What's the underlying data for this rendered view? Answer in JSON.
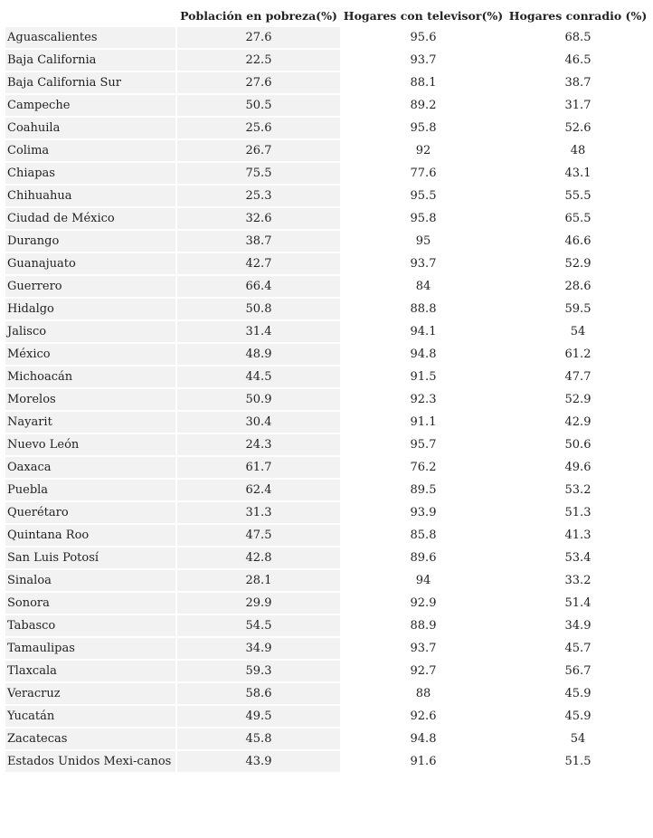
{
  "table": {
    "headers": [
      "Población en pobreza(%)",
      "Hogares con televisor(%)",
      "Hogares conradio (%)"
    ],
    "rows": [
      [
        "Aguascalientes",
        27.6,
        95.6,
        68.5
      ],
      [
        "Baja California",
        22.5,
        93.7,
        46.5
      ],
      [
        "Baja California Sur",
        27.6,
        88.1,
        38.7
      ],
      [
        "Campeche",
        50.5,
        89.2,
        31.7
      ],
      [
        "Coahuila",
        25.6,
        95.8,
        52.6
      ],
      [
        "Colima",
        26.7,
        92,
        48
      ],
      [
        "Chiapas",
        75.5,
        77.6,
        43.1
      ],
      [
        "Chihuahua",
        25.3,
        95.5,
        55.5
      ],
      [
        "Ciudad de México",
        32.6,
        95.8,
        65.5
      ],
      [
        "Durango",
        38.7,
        95,
        46.6
      ],
      [
        "Guanajuato",
        42.7,
        93.7,
        52.9
      ],
      [
        "Guerrero",
        66.4,
        84,
        28.6
      ],
      [
        "Hidalgo",
        50.8,
        88.8,
        59.5
      ],
      [
        "Jalisco",
        31.4,
        94.1,
        54
      ],
      [
        "México",
        48.9,
        94.8,
        61.2
      ],
      [
        "Michoacán",
        44.5,
        91.5,
        47.7
      ],
      [
        "Morelos",
        50.9,
        92.3,
        52.9
      ],
      [
        "Nayarit",
        30.4,
        91.1,
        42.9
      ],
      [
        "Nuevo León",
        24.3,
        95.7,
        50.6
      ],
      [
        "Oaxaca",
        61.7,
        76.2,
        49.6
      ],
      [
        "Puebla",
        62.4,
        89.5,
        53.2
      ],
      [
        "Querétaro",
        31.3,
        93.9,
        51.3
      ],
      [
        "Quintana Roo",
        47.5,
        85.8,
        41.3
      ],
      [
        "San Luis Potosí",
        42.8,
        89.6,
        53.4
      ],
      [
        "Sinaloa",
        28.1,
        94,
        33.2
      ],
      [
        "Sonora",
        29.9,
        92.9,
        51.4
      ],
      [
        "Tabasco",
        54.5,
        88.9,
        34.9
      ],
      [
        "Tamaulipas",
        34.9,
        93.7,
        45.7
      ],
      [
        "Tlaxcala",
        59.3,
        92.7,
        56.7
      ],
      [
        "Veracruz",
        58.6,
        88,
        45.9
      ],
      [
        "Yucatán",
        49.5,
        92.6,
        45.9
      ],
      [
        "Zacatecas",
        45.8,
        94.8,
        54
      ],
      [
        "Estados Unidos Mexi-canos",
        43.9,
        91.6,
        51.5
      ]
    ]
  }
}
